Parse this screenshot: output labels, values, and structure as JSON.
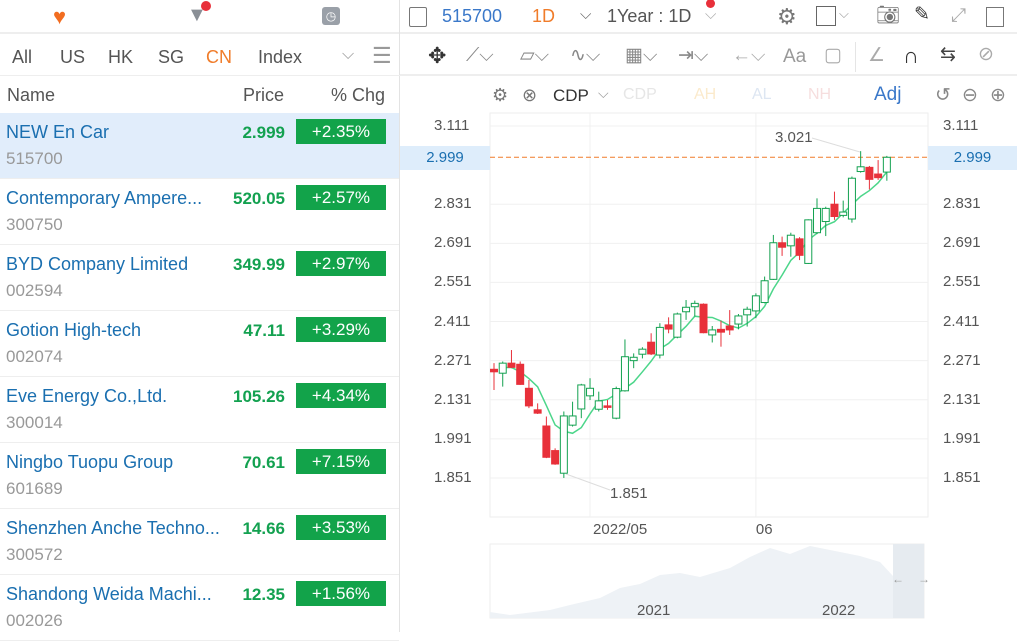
{
  "left": {
    "icons": [
      "heart-icon",
      "filter-icon",
      "clock-icon"
    ],
    "tabs": [
      {
        "label": "All"
      },
      {
        "label": "US"
      },
      {
        "label": "HK"
      },
      {
        "label": "SG"
      },
      {
        "label": "CN"
      },
      {
        "label": "Index"
      }
    ],
    "active_tab": "CN",
    "columns": {
      "name": "Name",
      "price": "Price",
      "chg": "% Chg"
    },
    "rows": [
      {
        "name": "NEW En Car",
        "code": "515700",
        "price": "2.999",
        "chg": "+2.35%"
      },
      {
        "name": "Contemporary Ampere...",
        "code": "300750",
        "price": "520.05",
        "chg": "+2.57%"
      },
      {
        "name": "BYD Company Limited",
        "code": "002594",
        "price": "349.99",
        "chg": "+2.97%"
      },
      {
        "name": "Gotion High-tech",
        "code": "002074",
        "price": "47.11",
        "chg": "+3.29%"
      },
      {
        "name": "Eve Energy Co.,Ltd.",
        "code": "300014",
        "price": "105.26",
        "chg": "+4.34%"
      },
      {
        "name": "Ningbo Tuopu Group",
        "code": "601689",
        "price": "70.61",
        "chg": "+7.15%"
      },
      {
        "name": "Shenzhen Anche Techno...",
        "code": "300572",
        "price": "14.66",
        "chg": "+3.53%"
      },
      {
        "name": "Shandong Weida Machi...",
        "code": "002026",
        "price": "12.35",
        "chg": "+1.56%"
      }
    ]
  },
  "topbar": {
    "symbol": "515700",
    "interval": "1D",
    "range": "1Year : 1D"
  },
  "chart_toolbar": {
    "indicator": "CDP",
    "legend": [
      "CDP",
      "AH",
      "AL",
      "NH"
    ],
    "adj": "Adj"
  },
  "colors": {
    "up": "#13a150",
    "down": "#e8303a",
    "ma": "#4cd68a",
    "accent": "#f07c2a",
    "link": "#1a6fb0"
  },
  "chart_data": {
    "type": "candlestick",
    "ylim": [
      1.81,
      3.151
    ],
    "yticks": [
      "3.111",
      "2.831",
      "2.691",
      "2.551",
      "2.411",
      "2.271",
      "2.131",
      "1.991",
      "1.851"
    ],
    "current_price": "2.999",
    "high_label": "3.021",
    "low_label": "1.851",
    "xticks": [
      {
        "index": 11,
        "label": "2022/05"
      },
      {
        "index": 30,
        "label": "06"
      }
    ],
    "ohlc": [
      [
        2.24,
        2.262,
        2.166,
        2.231
      ],
      [
        2.226,
        2.268,
        2.178,
        2.262
      ],
      [
        2.262,
        2.309,
        2.244,
        2.247
      ],
      [
        2.258,
        2.268,
        2.184,
        2.186
      ],
      [
        2.172,
        2.202,
        2.101,
        2.109
      ],
      [
        2.095,
        2.118,
        2.08,
        2.083
      ],
      [
        2.037,
        2.071,
        1.922,
        1.925
      ],
      [
        1.949,
        1.957,
        1.898,
        1.901
      ],
      [
        1.868,
        2.089,
        1.851,
        2.073
      ],
      [
        2.04,
        2.124,
        2.035,
        2.073
      ],
      [
        2.098,
        2.188,
        2.065,
        2.184
      ],
      [
        2.145,
        2.208,
        2.13,
        2.172
      ],
      [
        2.097,
        2.16,
        2.089,
        2.127
      ],
      [
        2.109,
        2.13,
        2.095,
        2.104
      ],
      [
        2.065,
        2.178,
        2.061,
        2.171
      ],
      [
        2.163,
        2.347,
        2.16,
        2.285
      ],
      [
        2.271,
        2.297,
        2.244,
        2.283
      ],
      [
        2.294,
        2.319,
        2.279,
        2.312
      ],
      [
        2.337,
        2.369,
        2.291,
        2.295
      ],
      [
        2.291,
        2.405,
        2.279,
        2.39
      ],
      [
        2.399,
        2.426,
        2.369,
        2.384
      ],
      [
        2.355,
        2.443,
        2.351,
        2.438
      ],
      [
        2.446,
        2.488,
        2.417,
        2.462
      ],
      [
        2.464,
        2.486,
        2.429,
        2.476
      ],
      [
        2.473,
        2.476,
        2.369,
        2.371
      ],
      [
        2.363,
        2.395,
        2.336,
        2.381
      ],
      [
        2.383,
        2.414,
        2.321,
        2.373
      ],
      [
        2.395,
        2.452,
        2.363,
        2.381
      ],
      [
        2.402,
        2.438,
        2.383,
        2.431
      ],
      [
        2.435,
        2.464,
        2.393,
        2.455
      ],
      [
        2.449,
        2.512,
        2.423,
        2.503
      ],
      [
        2.479,
        2.572,
        2.476,
        2.557
      ],
      [
        2.562,
        2.721,
        2.56,
        2.693
      ],
      [
        2.693,
        2.715,
        2.646,
        2.677
      ],
      [
        2.682,
        2.729,
        2.643,
        2.72
      ],
      [
        2.707,
        2.713,
        2.631,
        2.648
      ],
      [
        2.619,
        2.777,
        2.617,
        2.775
      ],
      [
        2.729,
        2.852,
        2.724,
        2.816
      ],
      [
        2.769,
        2.822,
        2.717,
        2.816
      ],
      [
        2.831,
        2.876,
        2.775,
        2.787
      ],
      [
        2.791,
        2.844,
        2.784,
        2.803
      ],
      [
        2.778,
        2.93,
        2.765,
        2.924
      ],
      [
        2.948,
        3.021,
        2.944,
        2.965
      ],
      [
        2.963,
        2.968,
        2.884,
        2.92
      ],
      [
        2.939,
        2.989,
        2.918,
        2.926
      ],
      [
        2.946,
        3.004,
        2.915,
        2.999
      ]
    ],
    "navigator": {
      "labels": [
        "2021",
        "2022"
      ]
    }
  }
}
